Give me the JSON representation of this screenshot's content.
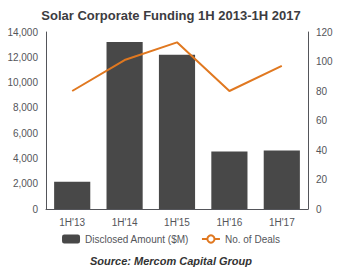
{
  "chart_data": {
    "type": "bar",
    "title": "Solar Corporate Funding 1H 2013-1H 2017",
    "categories": [
      "1H'13",
      "1H'14",
      "1H'15",
      "1H'16",
      "1H'17"
    ],
    "series": [
      {
        "name": "Disclosed Amount ($M)",
        "type": "bar",
        "color": "#484848",
        "values": [
          2150,
          13200,
          12200,
          4550,
          4620
        ]
      },
      {
        "name": "No. of Deals",
        "type": "line",
        "color": "#E07820",
        "axis": "y2",
        "marker": "none",
        "values": [
          80,
          101,
          113,
          80,
          97
        ]
      }
    ],
    "ylim": [
      0,
      14000
    ],
    "yticks": [
      0,
      {
        "value": 2000,
        "label": "2,000"
      },
      {
        "value": 4000,
        "label": "4,000"
      },
      {
        "value": 6000,
        "label": "6,000"
      },
      {
        "value": 8000,
        "label": "8,000"
      },
      {
        "value": 10000,
        "label": "10,000"
      },
      {
        "value": 12000,
        "label": "12,000"
      },
      {
        "value": 14000,
        "label": "14,000"
      }
    ],
    "y2lim": [
      0,
      120
    ],
    "y2ticks": [
      0,
      20,
      40,
      60,
      80,
      100,
      120
    ],
    "grid": false,
    "legend": "bottom",
    "annotations": [
      "Source: Mercom Capital Group"
    ]
  }
}
